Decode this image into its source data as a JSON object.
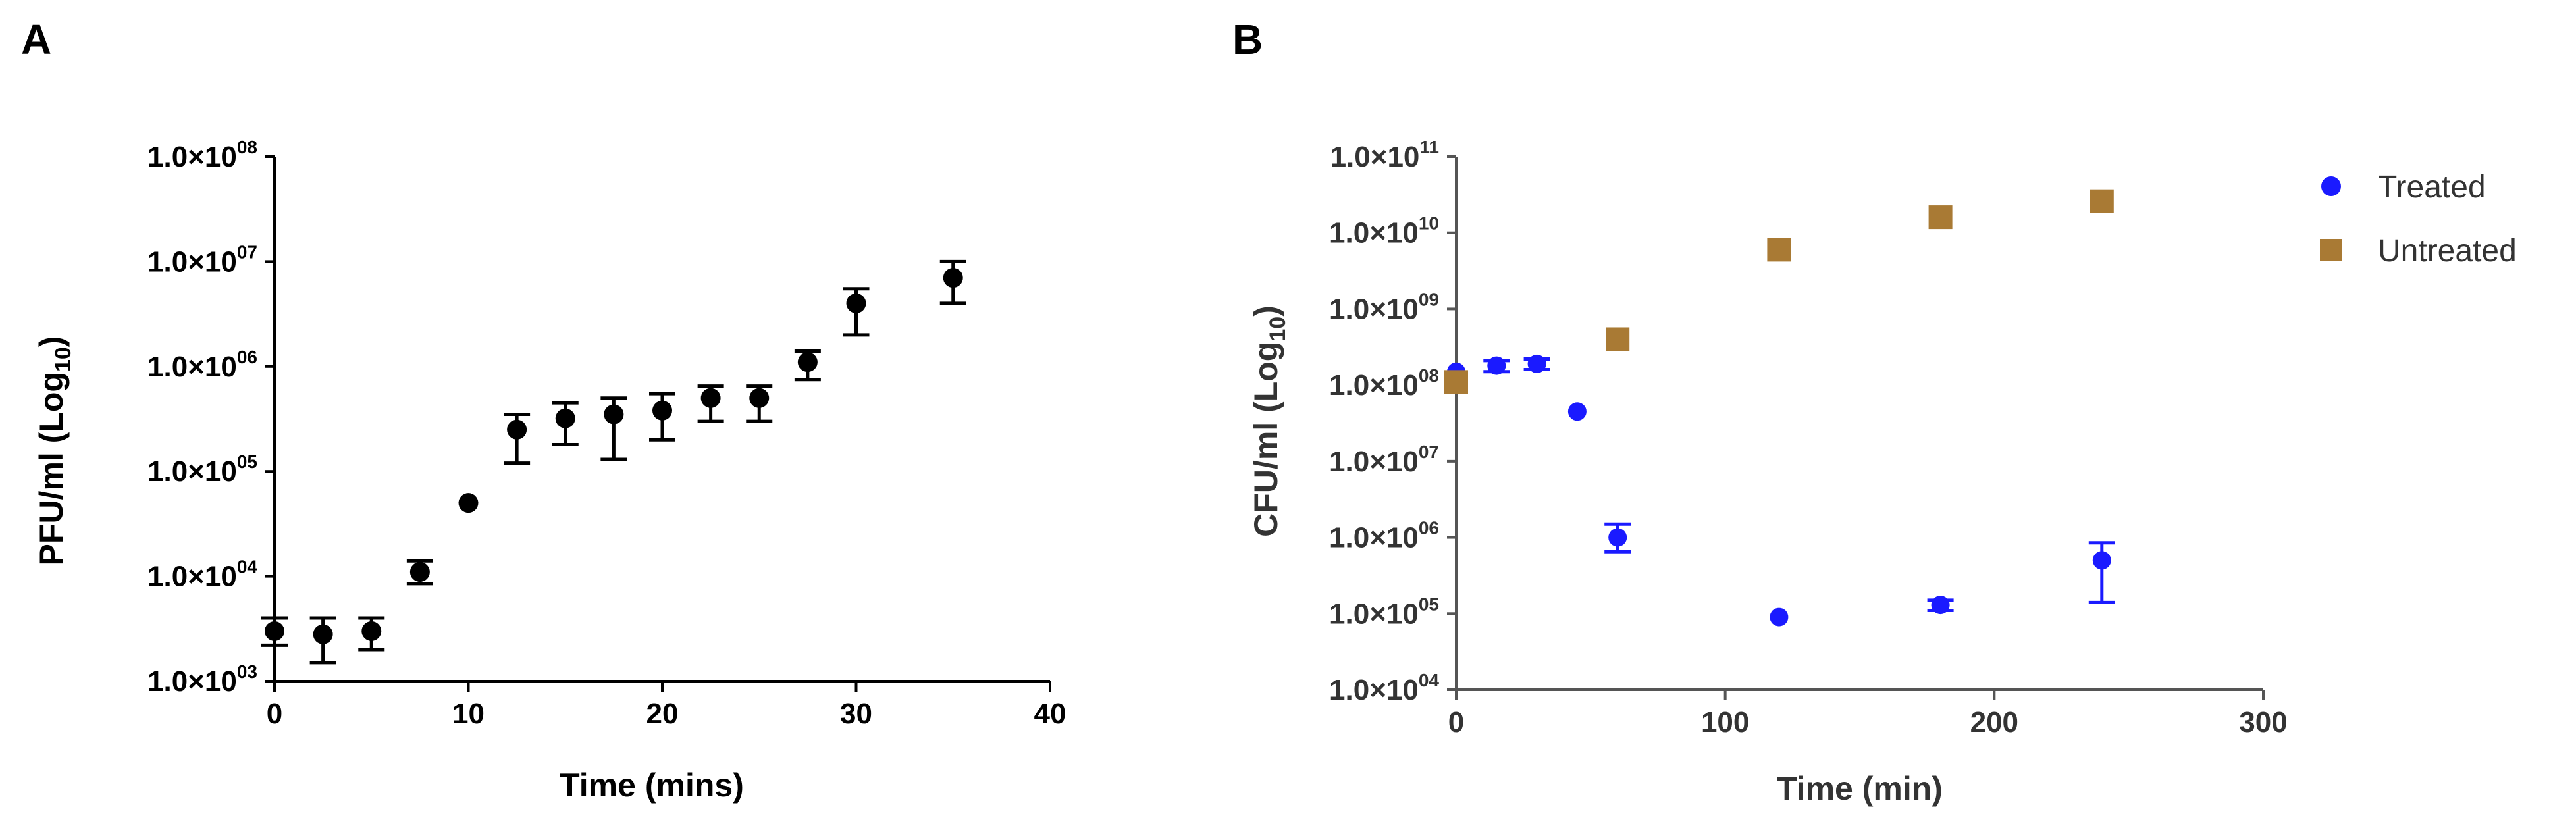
{
  "chart_data": [
    {
      "panel": "A",
      "type": "scatter",
      "xlabel": "Time (mins)",
      "ylabel": "PFU/ml (Log",
      "ylabel_sub": "10",
      "xlim": [
        0,
        40
      ],
      "xticks": [
        0,
        10,
        20,
        30,
        40
      ],
      "y_scale": "log",
      "ylim": [
        1000,
        100000000
      ],
      "yticks": [
        {
          "value": 1000,
          "mant": "1.0×10",
          "exp": "03"
        },
        {
          "value": 10000,
          "mant": "1.0×10",
          "exp": "04"
        },
        {
          "value": 100000,
          "mant": "1.0×10",
          "exp": "05"
        },
        {
          "value": 1000000,
          "mant": "1.0×10",
          "exp": "06"
        },
        {
          "value": 10000000,
          "mant": "1.0×10",
          "exp": "07"
        },
        {
          "value": 100000000,
          "mant": "1.0×10",
          "exp": "08"
        }
      ],
      "color": "#000000",
      "series": [
        {
          "points": [
            {
              "x": 0,
              "y": 3000,
              "lo": 2200,
              "hi": 4000
            },
            {
              "x": 2.5,
              "y": 2800,
              "lo": 1500,
              "hi": 4000
            },
            {
              "x": 5,
              "y": 3000,
              "lo": 2000,
              "hi": 4000
            },
            {
              "x": 7.5,
              "y": 11000,
              "lo": 8500,
              "hi": 14000
            },
            {
              "x": 10,
              "y": 50000,
              "lo": 50000,
              "hi": 50000
            },
            {
              "x": 12.5,
              "y": 250000,
              "lo": 120000,
              "hi": 350000
            },
            {
              "x": 15,
              "y": 320000,
              "lo": 180000,
              "hi": 450000
            },
            {
              "x": 17.5,
              "y": 350000,
              "lo": 130000,
              "hi": 500000
            },
            {
              "x": 20,
              "y": 380000,
              "lo": 200000,
              "hi": 550000
            },
            {
              "x": 22.5,
              "y": 500000,
              "lo": 300000,
              "hi": 650000
            },
            {
              "x": 25,
              "y": 500000,
              "lo": 300000,
              "hi": 650000
            },
            {
              "x": 27.5,
              "y": 1100000,
              "lo": 750000,
              "hi": 1400000
            },
            {
              "x": 30,
              "y": 4000000,
              "lo": 2000000,
              "hi": 5500000
            },
            {
              "x": 35,
              "y": 7000000,
              "lo": 4000000,
              "hi": 10000000
            }
          ]
        }
      ]
    },
    {
      "panel": "B",
      "type": "scatter",
      "xlabel": "Time (min)",
      "ylabel": "CFU/ml (Log",
      "ylabel_sub": "10",
      "xlim": [
        0,
        300
      ],
      "xticks": [
        0,
        100,
        200,
        300
      ],
      "y_scale": "log",
      "ylim": [
        10000,
        100000000000
      ],
      "yticks": [
        {
          "value": 10000,
          "mant": "1.0×10",
          "exp": "04"
        },
        {
          "value": 100000,
          "mant": "1.0×10",
          "exp": "05"
        },
        {
          "value": 1000000,
          "mant": "1.0×10",
          "exp": "06"
        },
        {
          "value": 10000000,
          "mant": "1.0×10",
          "exp": "07"
        },
        {
          "value": 100000000,
          "mant": "1.0×10",
          "exp": "08"
        },
        {
          "value": 1000000000,
          "mant": "1.0×10",
          "exp": "09"
        },
        {
          "value": 10000000000,
          "mant": "1.0×10",
          "exp": "10"
        },
        {
          "value": 100000000000,
          "mant": "1.0×10",
          "exp": "11"
        }
      ],
      "legend_position": "top-right",
      "series": [
        {
          "name": "Treated",
          "marker": "circle",
          "color": "#1a1aff",
          "points": [
            {
              "x": 0,
              "y": 150000000,
              "lo": 150000000,
              "hi": 150000000
            },
            {
              "x": 15,
              "y": 180000000,
              "lo": 150000000,
              "hi": 210000000
            },
            {
              "x": 30,
              "y": 190000000,
              "lo": 160000000,
              "hi": 220000000
            },
            {
              "x": 45,
              "y": 45000000,
              "lo": 45000000,
              "hi": 45000000
            },
            {
              "x": 60,
              "y": 1000000,
              "lo": 650000,
              "hi": 1500000
            },
            {
              "x": 120,
              "y": 90000,
              "lo": 90000,
              "hi": 90000
            },
            {
              "x": 180,
              "y": 130000,
              "lo": 110000,
              "hi": 150000
            },
            {
              "x": 240,
              "y": 500000,
              "lo": 140000,
              "hi": 850000
            }
          ]
        },
        {
          "name": "Untreated",
          "marker": "square",
          "color": "#a97a34",
          "points": [
            {
              "x": 0,
              "y": 110000000
            },
            {
              "x": 60,
              "y": 400000000
            },
            {
              "x": 120,
              "y": 6000000000
            },
            {
              "x": 180,
              "y": 16000000000
            },
            {
              "x": 240,
              "y": 26000000000
            }
          ]
        }
      ]
    }
  ]
}
